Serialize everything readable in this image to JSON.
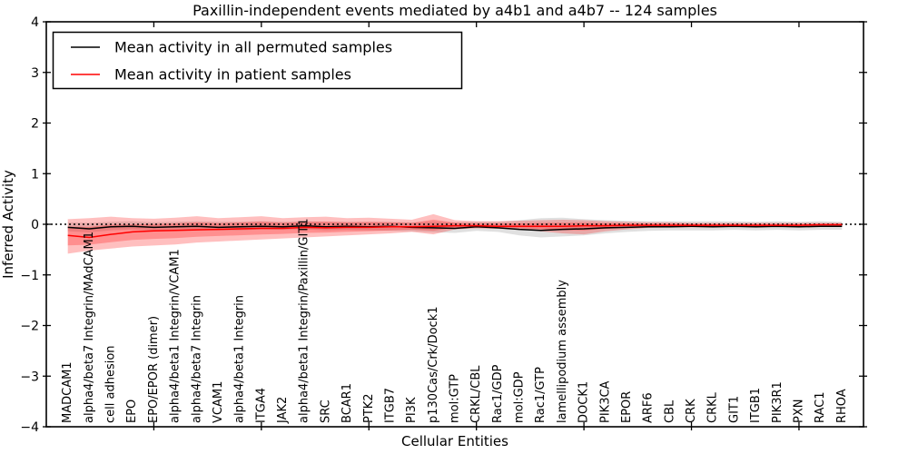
{
  "title": "Paxillin-independent events mediated by a4b1 and a4b7 -- 124 samples",
  "legend": {
    "entries": [
      {
        "label": "Mean activity in all permuted samples",
        "color": "#000000"
      },
      {
        "label": "Mean activity in patient samples",
        "color": "#ff0000"
      }
    ]
  },
  "chart_data": {
    "type": "line",
    "title": "Paxillin-independent events mediated by a4b1 and a4b7 -- 124 samples",
    "xlabel": "Cellular Entities",
    "ylabel": "Inferred Activity",
    "ylim": [
      -4,
      4
    ],
    "yticks": [
      4,
      3,
      2,
      1,
      0,
      -1,
      -2,
      -3,
      -4
    ],
    "xtick_positions": [
      5,
      10,
      15,
      20,
      25,
      30,
      35
    ],
    "grid": false,
    "zero_line": true,
    "legend_position": "upper left",
    "categories": [
      "MADCAM1",
      "alpha4/beta7 Integrin/MAdCAM1",
      "cell adhesion",
      "EPO",
      "EPO/EPOR (dimer)",
      "alpha4/beta1 Integrin/VCAM1",
      "alpha4/beta7 Integrin",
      "VCAM1",
      "alpha4/beta1 Integrin",
      "ITGA4",
      "JAK2",
      "alpha4/beta1 Integrin/Paxillin/GIT1",
      "SRC",
      "BCAR1",
      "PTK2",
      "ITGB7",
      "PI3K",
      "p130Cas/Crk/Dock1",
      "mol:GTP",
      "CRKL/CBL",
      "Rac1/GDP",
      "mol:GDP",
      "Rac1/GTP",
      "lamellipodium assembly",
      "DOCK1",
      "PIK3CA",
      "EPOR",
      "ARF6",
      "CBL",
      "CRK",
      "CRKL",
      "GIT1",
      "ITGB1",
      "PIK3R1",
      "PXN",
      "RAC1",
      "RHOA"
    ],
    "series": [
      {
        "name": "Mean activity in all permuted samples",
        "color": "#000000",
        "values": [
          -0.06,
          -0.09,
          -0.05,
          -0.04,
          -0.06,
          -0.05,
          -0.04,
          -0.06,
          -0.05,
          -0.04,
          -0.05,
          -0.03,
          -0.05,
          -0.04,
          -0.05,
          -0.04,
          -0.06,
          -0.07,
          -0.08,
          -0.05,
          -0.07,
          -0.1,
          -0.12,
          -0.1,
          -0.09,
          -0.07,
          -0.06,
          -0.05,
          -0.05,
          -0.04,
          -0.05,
          -0.04,
          -0.05,
          -0.04,
          -0.05,
          -0.04,
          -0.04
        ]
      },
      {
        "name": "Mean activity in patient samples",
        "color": "#ff0000",
        "values": [
          -0.22,
          -0.26,
          -0.2,
          -0.15,
          -0.13,
          -0.12,
          -0.11,
          -0.1,
          -0.09,
          -0.08,
          -0.08,
          -0.06,
          -0.07,
          -0.06,
          -0.06,
          -0.05,
          -0.05,
          -0.04,
          -0.03,
          -0.03,
          -0.04,
          -0.04,
          -0.04,
          -0.04,
          -0.03,
          -0.03,
          -0.02,
          -0.02,
          -0.02,
          -0.02,
          -0.02,
          -0.02,
          -0.02,
          -0.02,
          -0.02,
          -0.01,
          -0.01
        ]
      }
    ],
    "bands": [
      {
        "name": "permuted-samples-range",
        "color": "rgba(0,0,0,0.12)",
        "lo": [
          -0.14,
          -0.16,
          -0.12,
          -0.1,
          -0.13,
          -0.12,
          -0.11,
          -0.12,
          -0.12,
          -0.1,
          -0.11,
          -0.1,
          -0.12,
          -0.11,
          -0.12,
          -0.13,
          -0.14,
          -0.16,
          -0.17,
          -0.13,
          -0.15,
          -0.22,
          -0.26,
          -0.24,
          -0.22,
          -0.18,
          -0.15,
          -0.13,
          -0.12,
          -0.12,
          -0.12,
          -0.11,
          -0.12,
          -0.11,
          -0.12,
          -0.11,
          -0.11
        ],
        "hi": [
          0.04,
          0.03,
          0.05,
          0.06,
          0.04,
          0.05,
          0.06,
          0.05,
          0.05,
          0.06,
          0.05,
          0.06,
          0.05,
          0.05,
          0.05,
          0.05,
          0.04,
          0.05,
          0.04,
          0.05,
          0.05,
          0.08,
          0.12,
          0.13,
          0.1,
          0.08,
          0.07,
          0.06,
          0.06,
          0.06,
          0.06,
          0.06,
          0.05,
          0.06,
          0.05,
          0.06,
          0.05
        ]
      },
      {
        "name": "patient-samples-range",
        "color": "rgba(255,0,0,0.25)",
        "lo": [
          -0.58,
          -0.52,
          -0.48,
          -0.44,
          -0.42,
          -0.4,
          -0.36,
          -0.34,
          -0.32,
          -0.3,
          -0.28,
          -0.26,
          -0.24,
          -0.22,
          -0.2,
          -0.18,
          -0.15,
          -0.2,
          -0.1,
          -0.08,
          -0.09,
          -0.1,
          -0.14,
          -0.18,
          -0.2,
          -0.14,
          -0.1,
          -0.07,
          -0.06,
          -0.06,
          -0.06,
          -0.05,
          -0.06,
          -0.05,
          -0.06,
          -0.05,
          -0.05
        ],
        "hi": [
          0.1,
          0.12,
          0.15,
          0.12,
          0.11,
          0.13,
          0.16,
          0.12,
          0.14,
          0.16,
          0.12,
          0.14,
          0.15,
          0.12,
          0.13,
          0.11,
          0.09,
          0.2,
          0.08,
          0.06,
          0.06,
          0.07,
          0.08,
          0.09,
          0.08,
          0.06,
          0.05,
          0.04,
          0.04,
          0.03,
          0.03,
          0.03,
          0.03,
          0.03,
          0.03,
          0.03,
          0.03
        ]
      }
    ]
  }
}
